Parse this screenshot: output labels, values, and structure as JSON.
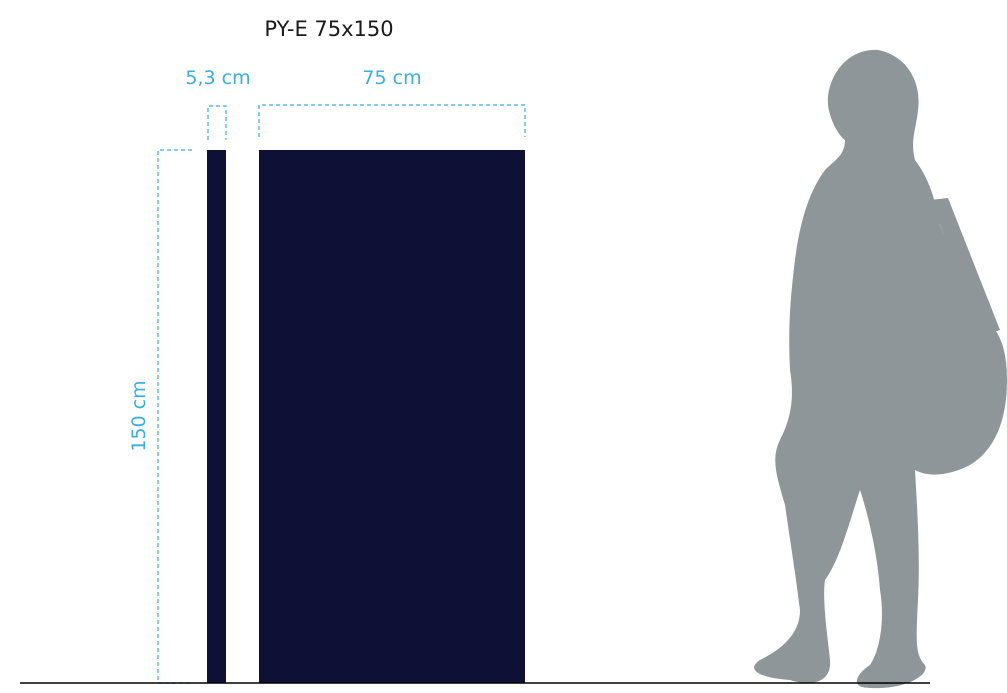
{
  "title": "PY-E 75x150",
  "dimensions": {
    "depth": "5,3 cm",
    "width": "75 cm",
    "height": "150 cm"
  }
}
